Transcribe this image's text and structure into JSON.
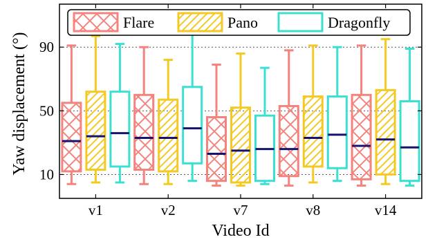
{
  "chart_data": {
    "type": "boxplot",
    "title": "",
    "xlabel": "Video Id",
    "ylabel": "Yaw displacement (°)",
    "categories": [
      "v1",
      "v2",
      "v7",
      "v8",
      "v14"
    ],
    "ylim": [
      -5,
      117
    ],
    "yticks": [
      10,
      50,
      90
    ],
    "grid": "horizontal dotted at y ticks",
    "legend_position": "top",
    "series": [
      {
        "name": "Flare",
        "color": "#f4837d",
        "hatch": "cross",
        "boxes": [
          {
            "whislo": 4,
            "q1": 12,
            "median": 31,
            "q3": 55,
            "whishi": 91
          },
          {
            "whislo": 4,
            "q1": 13,
            "median": 33,
            "q3": 60,
            "whishi": 90
          },
          {
            "whislo": 3,
            "q1": 6,
            "median": 23,
            "q3": 46,
            "whishi": 79
          },
          {
            "whislo": 3,
            "q1": 9,
            "median": 26,
            "q3": 53,
            "whishi": 88
          },
          {
            "whislo": 3,
            "q1": 7,
            "median": 28,
            "q3": 60,
            "whishi": 91
          }
        ]
      },
      {
        "name": "Pano",
        "color": "#f5c924",
        "hatch": "diagonal",
        "boxes": [
          {
            "whislo": 5,
            "q1": 13,
            "median": 34,
            "q3": 62,
            "whishi": 97
          },
          {
            "whislo": 4,
            "q1": 12,
            "median": 33,
            "q3": 57,
            "whishi": 82
          },
          {
            "whislo": 3,
            "q1": 5,
            "median": 25,
            "q3": 52,
            "whishi": 86
          },
          {
            "whislo": 5,
            "q1": 15,
            "median": 33,
            "q3": 59,
            "whishi": 91
          },
          {
            "whislo": 4,
            "q1": 10,
            "median": 32,
            "q3": 63,
            "whishi": 95
          }
        ]
      },
      {
        "name": "Dragonfly",
        "color": "#3ae0d2",
        "hatch": "none",
        "boxes": [
          {
            "whislo": 5,
            "q1": 15,
            "median": 36,
            "q3": 62,
            "whishi": 92
          },
          {
            "whislo": 6,
            "q1": 17,
            "median": 39,
            "q3": 65,
            "whishi": 98
          },
          {
            "whislo": 4,
            "q1": 6,
            "median": 26,
            "q3": 47,
            "whishi": 77
          },
          {
            "whislo": 6,
            "q1": 14,
            "median": 35,
            "q3": 59,
            "whishi": 90
          },
          {
            "whislo": 3,
            "q1": 6,
            "median": 27,
            "q3": 56,
            "whishi": 89
          }
        ]
      }
    ]
  }
}
